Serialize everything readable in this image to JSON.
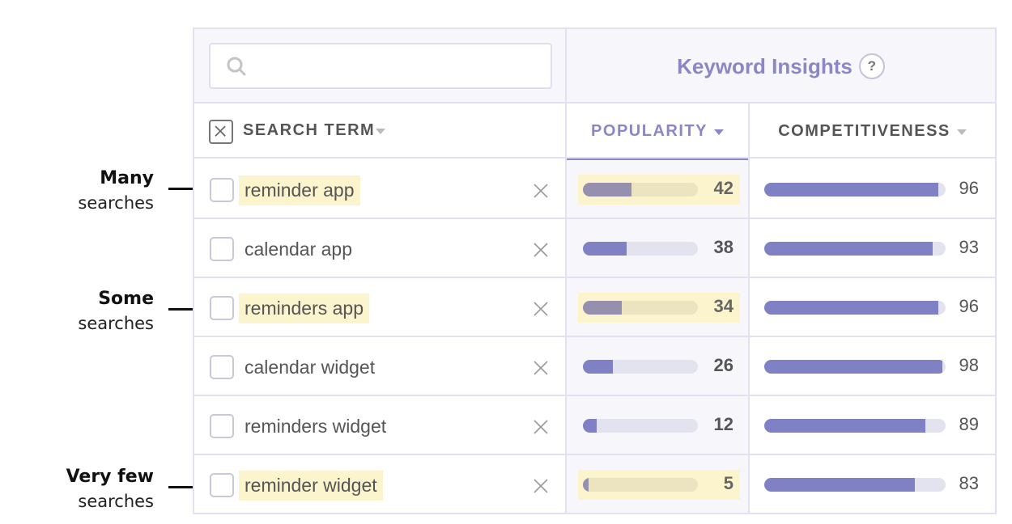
{
  "annotations": [
    {
      "strong": "Many",
      "light": "searches"
    },
    {
      "strong": "Some",
      "light": "searches"
    },
    {
      "strong": "Very few",
      "light": "searches"
    }
  ],
  "search": {
    "value": "",
    "placeholder": ""
  },
  "insights": {
    "title": "Keyword Insights",
    "help": "?"
  },
  "columns": {
    "term": "SEARCH TERM",
    "popularity": "POPULARITY",
    "competitiveness": "COMPETITIVENESS",
    "sorted_by": "popularity"
  },
  "colors": {
    "accent": "#8b87c4",
    "bar": "#8080c4",
    "highlight": "#fbf4cc"
  },
  "rows": [
    {
      "term": "reminder app",
      "popularity": 42,
      "competitiveness": 96,
      "highlighted": true
    },
    {
      "term": "calendar app",
      "popularity": 38,
      "competitiveness": 93,
      "highlighted": false
    },
    {
      "term": "reminders app",
      "popularity": 34,
      "competitiveness": 96,
      "highlighted": true
    },
    {
      "term": "calendar widget",
      "popularity": 26,
      "competitiveness": 98,
      "highlighted": false
    },
    {
      "term": "reminders widget",
      "popularity": 12,
      "competitiveness": 89,
      "highlighted": false
    },
    {
      "term": "reminder widget",
      "popularity": 5,
      "competitiveness": 83,
      "highlighted": true
    }
  ]
}
